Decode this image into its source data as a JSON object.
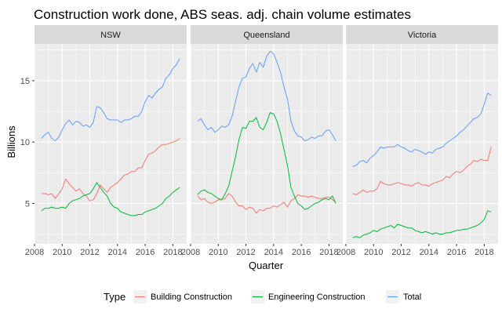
{
  "chart_data": {
    "type": "line",
    "title": "Construction work done, ABS seas. adj. chain volume estimates",
    "xlabel": "Quarter",
    "ylabel": "Billions",
    "xlim": [
      2008.0,
      2019.0
    ],
    "ylim": [
      1.7,
      18.0
    ],
    "x_ticks": [
      2008,
      2010,
      2012,
      2014,
      2016,
      2018
    ],
    "y_ticks": [
      5,
      10,
      15
    ],
    "x_tick_labels": [
      "2008",
      "2010",
      "2012",
      "2014",
      "2016",
      "2018"
    ],
    "y_tick_labels": [
      "5",
      "10",
      "15"
    ],
    "legend": {
      "title": "Type",
      "position": "bottom",
      "entries": [
        {
          "name": "Building Construction",
          "color": "#F8766D"
        },
        {
          "name": "Engineering Construction",
          "color": "#00BA38"
        },
        {
          "name": "Total",
          "color": "#619CFF"
        }
      ]
    },
    "x": [
      2008.5,
      2008.75,
      2009.0,
      2009.25,
      2009.5,
      2009.75,
      2010.0,
      2010.25,
      2010.5,
      2010.75,
      2011.0,
      2011.25,
      2011.5,
      2011.75,
      2012.0,
      2012.25,
      2012.5,
      2012.75,
      2013.0,
      2013.25,
      2013.5,
      2013.75,
      2014.0,
      2014.25,
      2014.5,
      2014.75,
      2015.0,
      2015.25,
      2015.5,
      2015.75,
      2016.0,
      2016.25,
      2016.5,
      2016.75,
      2017.0,
      2017.25,
      2017.5,
      2017.75,
      2018.0,
      2018.25,
      2018.5
    ],
    "panels": [
      {
        "name": "NSW",
        "series": [
          {
            "name": "Building Construction",
            "values": [
              5.8,
              5.8,
              5.7,
              5.8,
              5.4,
              5.8,
              6.2,
              7.0,
              6.6,
              6.3,
              6.0,
              6.2,
              5.8,
              5.6,
              5.2,
              5.3,
              5.8,
              6.5,
              6.2,
              5.9,
              6.3,
              6.5,
              6.7,
              7.0,
              7.3,
              7.4,
              7.6,
              7.6,
              7.9,
              7.9,
              8.5,
              9.0,
              9.1,
              9.3,
              9.6,
              9.8,
              9.8,
              9.9,
              10.0,
              10.1,
              10.3
            ]
          },
          {
            "name": "Engineering Construction",
            "values": [
              4.4,
              4.6,
              4.6,
              4.7,
              4.6,
              4.6,
              4.7,
              4.6,
              5.0,
              5.2,
              5.3,
              5.4,
              5.6,
              5.7,
              5.8,
              6.2,
              6.7,
              6.3,
              5.9,
              5.6,
              5.0,
              4.7,
              4.6,
              4.3,
              4.2,
              4.1,
              4.0,
              4.0,
              4.1,
              4.1,
              4.3,
              4.4,
              4.5,
              4.6,
              4.8,
              5.0,
              5.4,
              5.6,
              5.9,
              6.1,
              6.3
            ]
          },
          {
            "name": "Total",
            "values": [
              10.3,
              10.6,
              10.8,
              10.3,
              10.1,
              10.4,
              11.0,
              11.5,
              11.8,
              11.4,
              11.7,
              11.6,
              11.3,
              11.4,
              11.2,
              11.6,
              12.9,
              12.8,
              12.4,
              11.9,
              11.8,
              11.8,
              11.8,
              11.6,
              11.8,
              11.8,
              11.9,
              12.1,
              12.1,
              12.5,
              13.3,
              13.8,
              13.6,
              14.0,
              14.3,
              14.5,
              15.2,
              15.5,
              16.0,
              16.3,
              16.8
            ]
          }
        ]
      },
      {
        "name": "Queensland",
        "series": [
          {
            "name": "Building Construction",
            "values": [
              5.6,
              5.3,
              5.4,
              5.1,
              5.0,
              5.1,
              5.3,
              5.3,
              5.4,
              5.8,
              5.6,
              5.1,
              4.8,
              4.8,
              4.5,
              4.7,
              4.6,
              4.2,
              4.5,
              4.4,
              4.6,
              4.6,
              4.8,
              4.7,
              4.9,
              5.1,
              4.7,
              5.2,
              5.4,
              5.7,
              5.6,
              5.6,
              5.5,
              5.6,
              5.5,
              5.4,
              5.4,
              5.5,
              5.5,
              5.3,
              5.1
            ]
          },
          {
            "name": "Engineering Construction",
            "values": [
              5.7,
              6.0,
              6.1,
              5.9,
              5.8,
              5.6,
              5.4,
              5.3,
              5.8,
              6.4,
              7.6,
              8.8,
              10.2,
              11.2,
              11.1,
              11.7,
              11.7,
              12.0,
              11.2,
              11.0,
              11.6,
              12.4,
              12.3,
              11.7,
              10.7,
              9.4,
              8.1,
              6.3,
              5.6,
              5.0,
              4.8,
              4.5,
              4.6,
              4.8,
              5.0,
              5.1,
              5.3,
              5.4,
              5.3,
              5.6,
              5.0
            ]
          },
          {
            "name": "Total",
            "values": [
              11.7,
              11.9,
              11.4,
              11.0,
              11.2,
              10.8,
              11.0,
              11.3,
              11.2,
              11.4,
              12.1,
              13.3,
              14.5,
              15.2,
              15.3,
              16.0,
              16.4,
              15.7,
              16.5,
              16.1,
              17.0,
              17.4,
              17.2,
              16.5,
              15.7,
              14.5,
              13.5,
              11.7,
              10.9,
              10.5,
              10.4,
              10.1,
              10.2,
              10.4,
              10.3,
              10.5,
              10.5,
              10.9,
              11.0,
              10.6,
              10.1
            ]
          }
        ]
      },
      {
        "name": "Victoria",
        "series": [
          {
            "name": "Building Construction",
            "values": [
              5.8,
              5.7,
              5.9,
              6.1,
              5.9,
              6.0,
              6.0,
              6.2,
              6.8,
              6.6,
              6.5,
              6.5,
              6.6,
              6.7,
              6.6,
              6.5,
              6.5,
              6.4,
              6.6,
              6.7,
              6.5,
              6.5,
              6.4,
              6.6,
              6.7,
              6.8,
              6.9,
              7.2,
              7.1,
              7.4,
              7.6,
              7.5,
              7.7,
              8.0,
              8.2,
              8.5,
              8.4,
              8.6,
              8.5,
              8.5,
              9.6
            ]
          },
          {
            "name": "Engineering Construction",
            "values": [
              2.2,
              2.3,
              2.2,
              2.4,
              2.5,
              2.6,
              2.8,
              2.7,
              2.9,
              3.0,
              3.1,
              3.2,
              3.0,
              3.3,
              3.2,
              3.1,
              3.0,
              3.0,
              2.8,
              2.7,
              2.6,
              2.7,
              2.6,
              2.5,
              2.6,
              2.5,
              2.5,
              2.6,
              2.6,
              2.7,
              2.8,
              2.8,
              2.9,
              2.9,
              3.0,
              3.1,
              3.2,
              3.4,
              3.7,
              4.4,
              4.3
            ]
          },
          {
            "name": "Total",
            "values": [
              8.0,
              8.1,
              8.4,
              8.5,
              8.3,
              8.7,
              8.9,
              9.2,
              9.6,
              9.5,
              9.6,
              9.6,
              9.6,
              9.8,
              9.6,
              9.5,
              9.3,
              9.2,
              9.4,
              9.3,
              9.2,
              9.0,
              9.2,
              9.1,
              9.4,
              9.5,
              9.6,
              9.9,
              10.1,
              10.3,
              10.5,
              10.8,
              11.0,
              11.3,
              11.6,
              11.9,
              12.0,
              12.3,
              13.1,
              14.0,
              13.8
            ]
          }
        ]
      }
    ]
  }
}
